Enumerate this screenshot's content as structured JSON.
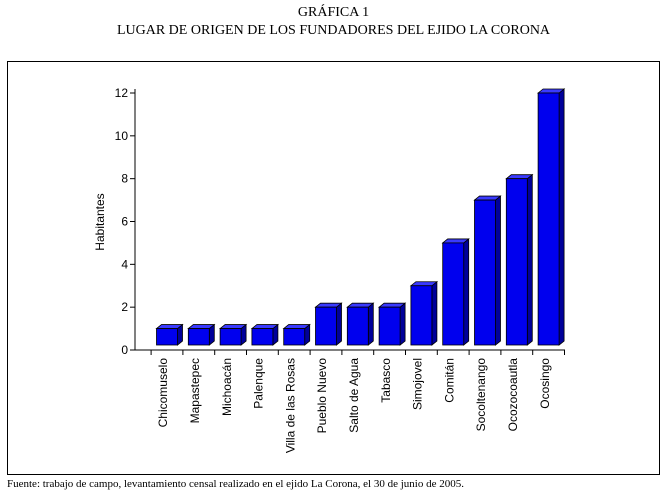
{
  "header": {
    "figure_number": "GRÁFICA 1",
    "figure_title": "LUGAR DE ORIGEN DE LOS FUNDADORES DEL EJIDO LA CORONA"
  },
  "footer": {
    "source": "Fuente: trabajo de campo, levantamiento censal realizado en el ejido La Corona, el 30 de junio de 2005."
  },
  "colors": {
    "bar_front": "#0000ee",
    "bar_side": "#00009a",
    "bar_top": "#3a3aff"
  },
  "chart_data": {
    "type": "bar",
    "title": "LUGAR DE ORIGEN DE LOS FUNDADORES DEL EJIDO LA CORONA",
    "xlabel": "",
    "ylabel": "Habitantes",
    "ylim": [
      0,
      12
    ],
    "yticks": [
      0,
      2,
      4,
      6,
      8,
      10,
      12
    ],
    "categories": [
      "Chicomuselo",
      "Mapastepec",
      "Michoacán",
      "Palenque",
      "Villa de las Rosas",
      "Pueblo Nuevo",
      "Salto de Agua",
      "Tabasco",
      "Simojovel",
      "Comitán",
      "Socoltenango",
      "Ocozocoautla",
      "Ocosingo"
    ],
    "values": [
      1,
      1,
      1,
      1,
      1,
      2,
      2,
      2,
      3,
      5,
      7,
      8,
      12
    ],
    "grid": false,
    "legend": "none"
  }
}
